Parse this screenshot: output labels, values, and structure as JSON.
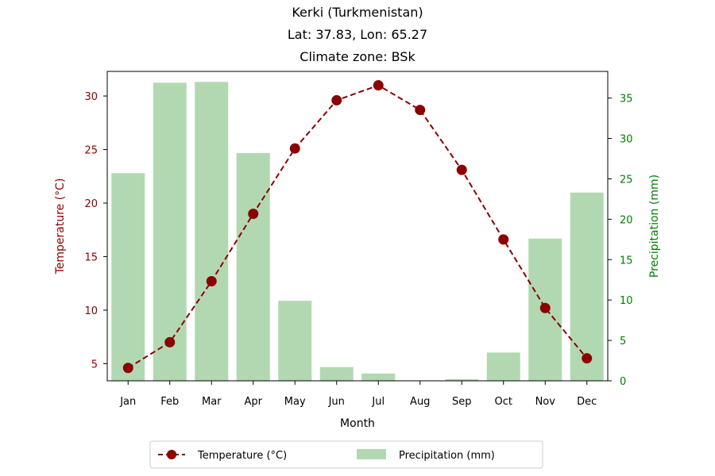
{
  "chart_data": {
    "type": "bar+line",
    "title_lines": [
      "Kerki (Turkmenistan)",
      "Lat: 37.83, Lon: 65.27",
      "Climate zone: BSk"
    ],
    "xlabel": "Month",
    "categories": [
      "Jan",
      "Feb",
      "Mar",
      "Apr",
      "May",
      "Jun",
      "Jul",
      "Aug",
      "Sep",
      "Oct",
      "Nov",
      "Dec"
    ],
    "temperature": {
      "name": "Temperature (°C)",
      "axis_label": "Temperature (°C)",
      "values": [
        4.6,
        7.0,
        12.7,
        19.0,
        25.1,
        29.6,
        31.0,
        28.7,
        23.1,
        16.6,
        10.2,
        5.5
      ],
      "ylim": [
        3.4,
        32.3
      ],
      "ticks": [
        5,
        10,
        15,
        20,
        25,
        30
      ],
      "color": "#8b0000",
      "linestyle": "dashed",
      "marker": "circle"
    },
    "precipitation": {
      "name": "Precipitation (mm)",
      "axis_label": "Precipitation (mm)",
      "values": [
        25.7,
        36.9,
        37.0,
        28.2,
        9.9,
        1.7,
        0.9,
        0.0,
        0.2,
        3.5,
        17.6,
        23.3
      ],
      "ylim": [
        0,
        38.3
      ],
      "ticks": [
        0,
        5,
        10,
        15,
        20,
        25,
        30,
        35
      ],
      "color": "#b2d8b2",
      "tick_color": "#008000"
    },
    "legend": {
      "placement": "bottom-center",
      "entries": [
        "Temperature (°C)",
        "Precipitation (mm)"
      ]
    },
    "grid": false
  }
}
